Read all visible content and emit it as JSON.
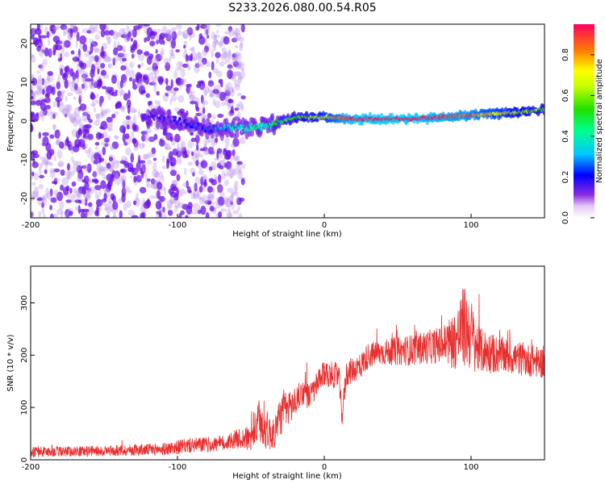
{
  "title": "S233.2026.080.00.54.R05",
  "colors": {
    "axis": "#000000",
    "snr_line": "#e83030",
    "background": "#ffffff"
  },
  "chart_data": [
    {
      "type": "heatmap",
      "xlabel": "Height of straight line (km)",
      "ylabel": "Frequency (Hz)",
      "xlim": [
        -200,
        150
      ],
      "ylim": [
        -25,
        25
      ],
      "xticks": [
        -200,
        -100,
        0,
        100
      ],
      "yticks": [
        -20,
        -10,
        0,
        10,
        20
      ],
      "ridge": {
        "description_points_x": [
          -120,
          -100,
          -80,
          -60,
          -40,
          -20,
          0,
          20,
          40,
          60,
          80,
          100,
          120,
          140,
          150
        ],
        "description_points_freq": [
          1.5,
          0,
          -2,
          -2,
          -1.5,
          1,
          1,
          0.5,
          0.5,
          0.5,
          1,
          1.5,
          2,
          2.5,
          3
        ],
        "description_points_amplitude": [
          0.15,
          0.15,
          0.2,
          0.35,
          0.4,
          0.55,
          0.7,
          0.95,
          0.95,
          0.95,
          0.9,
          0.85,
          0.7,
          0.6,
          0.55
        ]
      },
      "noise_region_x": [
        -200,
        -55
      ],
      "colorbar": {
        "label": "Normalized spectral amplitude",
        "range": [
          0,
          0.95
        ],
        "ticks": [
          0.0,
          0.2,
          0.4,
          0.6,
          0.8
        ],
        "tick_labels": [
          "0.0",
          "0.2",
          "0.4",
          "0.6",
          "0.8"
        ]
      }
    },
    {
      "type": "line",
      "xlabel": "Height of straight line (km)",
      "ylabel": "SNR (10 * v/v)",
      "xlim": [
        -200,
        150
      ],
      "ylim": [
        0,
        370
      ],
      "xticks": [
        -200,
        -100,
        0,
        100
      ],
      "yticks": [
        0,
        100,
        200,
        300
      ],
      "series": [
        {
          "name": "SNR",
          "x": [
            -200,
            -150,
            -110,
            -90,
            -70,
            -60,
            -50,
            -45,
            -40,
            -35,
            -30,
            -20,
            -15,
            -10,
            0,
            10,
            12,
            15,
            25,
            30,
            40,
            60,
            80,
            90,
            95,
            100,
            105,
            120,
            150
          ],
          "values": [
            15,
            17,
            20,
            28,
            30,
            40,
            40,
            70,
            60,
            45,
            85,
            110,
            130,
            120,
            165,
            160,
            80,
            165,
            180,
            200,
            205,
            210,
            220,
            230,
            255,
            240,
            210,
            200,
            185
          ],
          "spread": [
            10,
            10,
            12,
            15,
            15,
            18,
            25,
            40,
            40,
            30,
            40,
            30,
            25,
            25,
            25,
            25,
            20,
            25,
            25,
            25,
            25,
            30,
            35,
            60,
            80,
            70,
            45,
            35,
            30
          ]
        }
      ]
    }
  ]
}
